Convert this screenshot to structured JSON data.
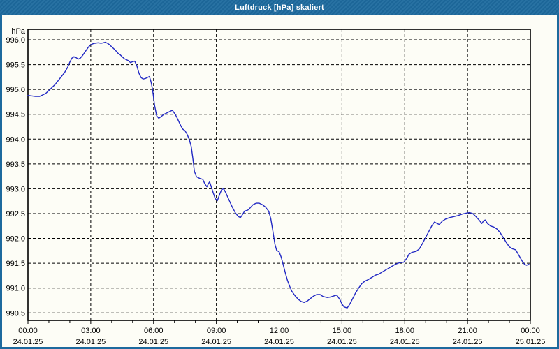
{
  "window": {
    "title": "Luftdruck [hPa] skaliert"
  },
  "colors": {
    "titlebar_bg": "#1d6a9e",
    "frame_border": "#1d6a9e",
    "content_bg": "#fdfdf6",
    "grid": "#000000",
    "axis": "#000000",
    "line": "#2229c4",
    "text": "#000000"
  },
  "chart_data": {
    "type": "line",
    "title": "Luftdruck [hPa] skaliert",
    "ylabel": "hPa",
    "xlabel": "",
    "grid": "dashed, horizontal every 0.5 hPa, vertical every 3 h",
    "legend_position": "none",
    "ylim": [
      990.5,
      996.0
    ],
    "xlim_hours": [
      0,
      24
    ],
    "minor_xtick_every_hours": 1,
    "yticks": [
      {
        "value": 996.0,
        "label": "996,0"
      },
      {
        "value": 995.5,
        "label": "995,5"
      },
      {
        "value": 995.0,
        "label": "995,0"
      },
      {
        "value": 994.5,
        "label": "994,5"
      },
      {
        "value": 994.0,
        "label": "994,0"
      },
      {
        "value": 993.5,
        "label": "993,5"
      },
      {
        "value": 993.0,
        "label": "993,0"
      },
      {
        "value": 992.5,
        "label": "992,5"
      },
      {
        "value": 992.0,
        "label": "992,0"
      },
      {
        "value": 991.5,
        "label": "991,5"
      },
      {
        "value": 991.0,
        "label": "991,0"
      },
      {
        "value": 990.5,
        "label": "990,5"
      }
    ],
    "xticks": [
      {
        "hour": 0,
        "time": "00:00",
        "date": "24.01.25"
      },
      {
        "hour": 3,
        "time": "03:00",
        "date": "24.01.25"
      },
      {
        "hour": 6,
        "time": "06:00",
        "date": "24.01.25"
      },
      {
        "hour": 9,
        "time": "09:00",
        "date": "24.01.25"
      },
      {
        "hour": 12,
        "time": "12:00",
        "date": "24.01.25"
      },
      {
        "hour": 15,
        "time": "15:00",
        "date": "24.01.25"
      },
      {
        "hour": 18,
        "time": "18:00",
        "date": "24.01.25"
      },
      {
        "hour": 21,
        "time": "21:00",
        "date": "24.01.25"
      },
      {
        "hour": 24,
        "time": "00:00",
        "date": "25.01.25"
      }
    ],
    "series": [
      {
        "name": "Luftdruck",
        "unit": "hPa",
        "color": "#2229c4",
        "points": [
          [
            0.0,
            994.88
          ],
          [
            0.2,
            994.87
          ],
          [
            0.35,
            994.86
          ],
          [
            0.55,
            994.86
          ],
          [
            0.7,
            994.89
          ],
          [
            0.85,
            994.92
          ],
          [
            1.0,
            994.98
          ],
          [
            1.15,
            995.04
          ],
          [
            1.3,
            995.1
          ],
          [
            1.45,
            995.18
          ],
          [
            1.6,
            995.26
          ],
          [
            1.75,
            995.34
          ],
          [
            1.9,
            995.45
          ],
          [
            2.0,
            995.55
          ],
          [
            2.1,
            995.63
          ],
          [
            2.2,
            995.66
          ],
          [
            2.3,
            995.64
          ],
          [
            2.4,
            995.61
          ],
          [
            2.5,
            995.63
          ],
          [
            2.6,
            995.68
          ],
          [
            2.7,
            995.74
          ],
          [
            2.8,
            995.8
          ],
          [
            2.9,
            995.86
          ],
          [
            3.0,
            995.9
          ],
          [
            3.1,
            995.92
          ],
          [
            3.2,
            995.93
          ],
          [
            3.35,
            995.94
          ],
          [
            3.5,
            995.93
          ],
          [
            3.6,
            995.94
          ],
          [
            3.7,
            995.95
          ],
          [
            3.8,
            995.93
          ],
          [
            3.9,
            995.9
          ],
          [
            4.0,
            995.86
          ],
          [
            4.1,
            995.82
          ],
          [
            4.2,
            995.78
          ],
          [
            4.3,
            995.73
          ],
          [
            4.4,
            995.7
          ],
          [
            4.5,
            995.66
          ],
          [
            4.6,
            995.62
          ],
          [
            4.7,
            995.6
          ],
          [
            4.8,
            995.58
          ],
          [
            4.9,
            995.54
          ],
          [
            5.0,
            995.56
          ],
          [
            5.1,
            995.57
          ],
          [
            5.2,
            995.48
          ],
          [
            5.3,
            995.33
          ],
          [
            5.4,
            995.24
          ],
          [
            5.5,
            995.21
          ],
          [
            5.6,
            995.22
          ],
          [
            5.7,
            995.24
          ],
          [
            5.8,
            995.26
          ],
          [
            5.88,
            995.15
          ],
          [
            5.95,
            995.0
          ],
          [
            6.05,
            994.68
          ],
          [
            6.15,
            994.47
          ],
          [
            6.25,
            994.42
          ],
          [
            6.35,
            994.45
          ],
          [
            6.5,
            994.5
          ],
          [
            6.65,
            994.53
          ],
          [
            6.8,
            994.56
          ],
          [
            6.9,
            994.58
          ],
          [
            7.0,
            994.52
          ],
          [
            7.1,
            994.45
          ],
          [
            7.2,
            994.36
          ],
          [
            7.3,
            994.27
          ],
          [
            7.4,
            994.2
          ],
          [
            7.5,
            994.17
          ],
          [
            7.6,
            994.1
          ],
          [
            7.7,
            994.0
          ],
          [
            7.8,
            993.85
          ],
          [
            7.88,
            993.6
          ],
          [
            7.95,
            993.35
          ],
          [
            8.05,
            993.24
          ],
          [
            8.2,
            993.21
          ],
          [
            8.35,
            993.19
          ],
          [
            8.45,
            993.1
          ],
          [
            8.55,
            993.04
          ],
          [
            8.62,
            993.1
          ],
          [
            8.68,
            993.14
          ],
          [
            8.75,
            993.05
          ],
          [
            8.85,
            992.92
          ],
          [
            8.95,
            992.8
          ],
          [
            9.05,
            992.76
          ],
          [
            9.15,
            992.88
          ],
          [
            9.25,
            992.98
          ],
          [
            9.35,
            993.0
          ],
          [
            9.45,
            992.92
          ],
          [
            9.6,
            992.78
          ],
          [
            9.75,
            992.64
          ],
          [
            9.9,
            992.52
          ],
          [
            10.05,
            992.44
          ],
          [
            10.15,
            992.42
          ],
          [
            10.25,
            992.48
          ],
          [
            10.35,
            992.55
          ],
          [
            10.5,
            992.57
          ],
          [
            10.6,
            992.61
          ],
          [
            10.75,
            992.68
          ],
          [
            10.9,
            992.71
          ],
          [
            11.05,
            992.71
          ],
          [
            11.2,
            992.68
          ],
          [
            11.35,
            992.63
          ],
          [
            11.5,
            992.55
          ],
          [
            11.6,
            992.4
          ],
          [
            11.7,
            992.15
          ],
          [
            11.8,
            991.88
          ],
          [
            11.88,
            991.76
          ],
          [
            12.0,
            991.73
          ],
          [
            12.1,
            991.62
          ],
          [
            12.2,
            991.46
          ],
          [
            12.3,
            991.3
          ],
          [
            12.4,
            991.15
          ],
          [
            12.5,
            991.04
          ],
          [
            12.6,
            990.94
          ],
          [
            12.75,
            990.85
          ],
          [
            12.9,
            990.78
          ],
          [
            13.05,
            990.73
          ],
          [
            13.2,
            990.71
          ],
          [
            13.35,
            990.74
          ],
          [
            13.5,
            990.79
          ],
          [
            13.65,
            990.84
          ],
          [
            13.8,
            990.87
          ],
          [
            13.95,
            990.87
          ],
          [
            14.1,
            990.83
          ],
          [
            14.3,
            990.81
          ],
          [
            14.45,
            990.82
          ],
          [
            14.6,
            990.84
          ],
          [
            14.75,
            990.86
          ],
          [
            14.9,
            990.77
          ],
          [
            15.0,
            990.68
          ],
          [
            15.1,
            990.62
          ],
          [
            15.25,
            990.6
          ],
          [
            15.35,
            990.66
          ],
          [
            15.5,
            990.78
          ],
          [
            15.65,
            990.9
          ],
          [
            15.8,
            991.0
          ],
          [
            15.95,
            991.09
          ],
          [
            16.1,
            991.14
          ],
          [
            16.25,
            991.17
          ],
          [
            16.45,
            991.22
          ],
          [
            16.6,
            991.26
          ],
          [
            16.75,
            991.28
          ],
          [
            16.95,
            991.33
          ],
          [
            17.15,
            991.38
          ],
          [
            17.35,
            991.43
          ],
          [
            17.55,
            991.48
          ],
          [
            17.75,
            991.51
          ],
          [
            17.95,
            991.52
          ],
          [
            18.1,
            991.6
          ],
          [
            18.2,
            991.68
          ],
          [
            18.35,
            991.72
          ],
          [
            18.55,
            991.74
          ],
          [
            18.7,
            991.79
          ],
          [
            18.85,
            991.9
          ],
          [
            19.0,
            992.02
          ],
          [
            19.15,
            992.14
          ],
          [
            19.3,
            992.26
          ],
          [
            19.42,
            992.33
          ],
          [
            19.55,
            992.3
          ],
          [
            19.65,
            992.28
          ],
          [
            19.8,
            992.35
          ],
          [
            19.95,
            992.39
          ],
          [
            20.15,
            992.42
          ],
          [
            20.35,
            992.44
          ],
          [
            20.55,
            992.46
          ],
          [
            20.75,
            992.49
          ],
          [
            20.95,
            992.51
          ],
          [
            21.1,
            992.52
          ],
          [
            21.25,
            992.5
          ],
          [
            21.4,
            992.44
          ],
          [
            21.55,
            992.37
          ],
          [
            21.68,
            992.3
          ],
          [
            21.78,
            992.36
          ],
          [
            21.85,
            992.37
          ],
          [
            21.95,
            992.3
          ],
          [
            22.1,
            992.25
          ],
          [
            22.25,
            992.23
          ],
          [
            22.4,
            992.19
          ],
          [
            22.55,
            992.12
          ],
          [
            22.7,
            992.02
          ],
          [
            22.85,
            991.92
          ],
          [
            23.0,
            991.83
          ],
          [
            23.15,
            991.79
          ],
          [
            23.3,
            991.77
          ],
          [
            23.45,
            991.66
          ],
          [
            23.6,
            991.55
          ],
          [
            23.72,
            991.48
          ],
          [
            23.82,
            991.46
          ],
          [
            23.93,
            991.48
          ]
        ]
      }
    ]
  }
}
